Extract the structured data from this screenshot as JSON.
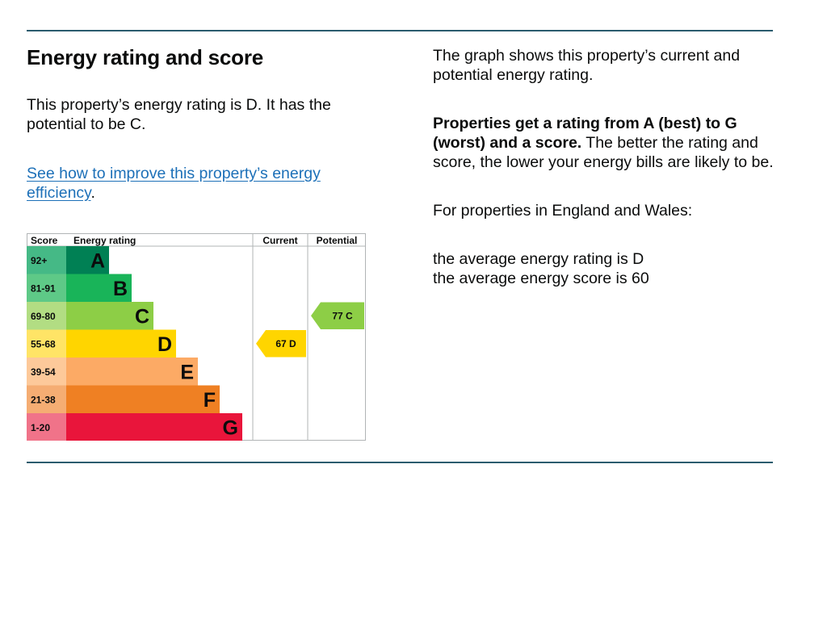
{
  "header": {
    "title": "Energy rating and score"
  },
  "summary": {
    "rating_text": "This property’s energy rating is D. It has the potential to be C.",
    "improve_link": "See how to improve this property’s energy efficiency",
    "improve_link_suffix": "."
  },
  "explanation": {
    "graph_note": "The graph shows this property’s current and potential energy rating.",
    "rating_bold": "Properties get a rating from A (best) to G (worst) and a score.",
    "rating_rest": " The better the rating and score, the lower your energy bills are likely to be.",
    "region_intro": "For properties in England and Wales:",
    "average_rating": "the average energy rating is D",
    "average_score": "the average energy score is 60"
  },
  "chart_data": {
    "type": "table",
    "headers": {
      "score": "Score",
      "rating": "Energy rating",
      "current": "Current",
      "potential": "Potential"
    },
    "bands": [
      {
        "letter": "A",
        "range": "92+",
        "color": "#008054",
        "score_bg": "#45b986"
      },
      {
        "letter": "B",
        "range": "81-91",
        "color": "#19b459",
        "score_bg": "#5ec987"
      },
      {
        "letter": "C",
        "range": "69-80",
        "color": "#8dce46",
        "score_bg": "#b2dd83"
      },
      {
        "letter": "D",
        "range": "55-68",
        "color": "#ffd500",
        "score_bg": "#ffe466"
      },
      {
        "letter": "E",
        "range": "39-54",
        "color": "#fcaa65",
        "score_bg": "#fdc99a"
      },
      {
        "letter": "F",
        "range": "21-38",
        "color": "#ef8023",
        "score_bg": "#f5ad73"
      },
      {
        "letter": "G",
        "range": "1-20",
        "color": "#e9153b",
        "score_bg": "#f07389"
      }
    ],
    "current": {
      "score": 67,
      "letter": "D",
      "label": "67 D"
    },
    "potential": {
      "score": 77,
      "letter": "C",
      "label": "77 C"
    }
  }
}
